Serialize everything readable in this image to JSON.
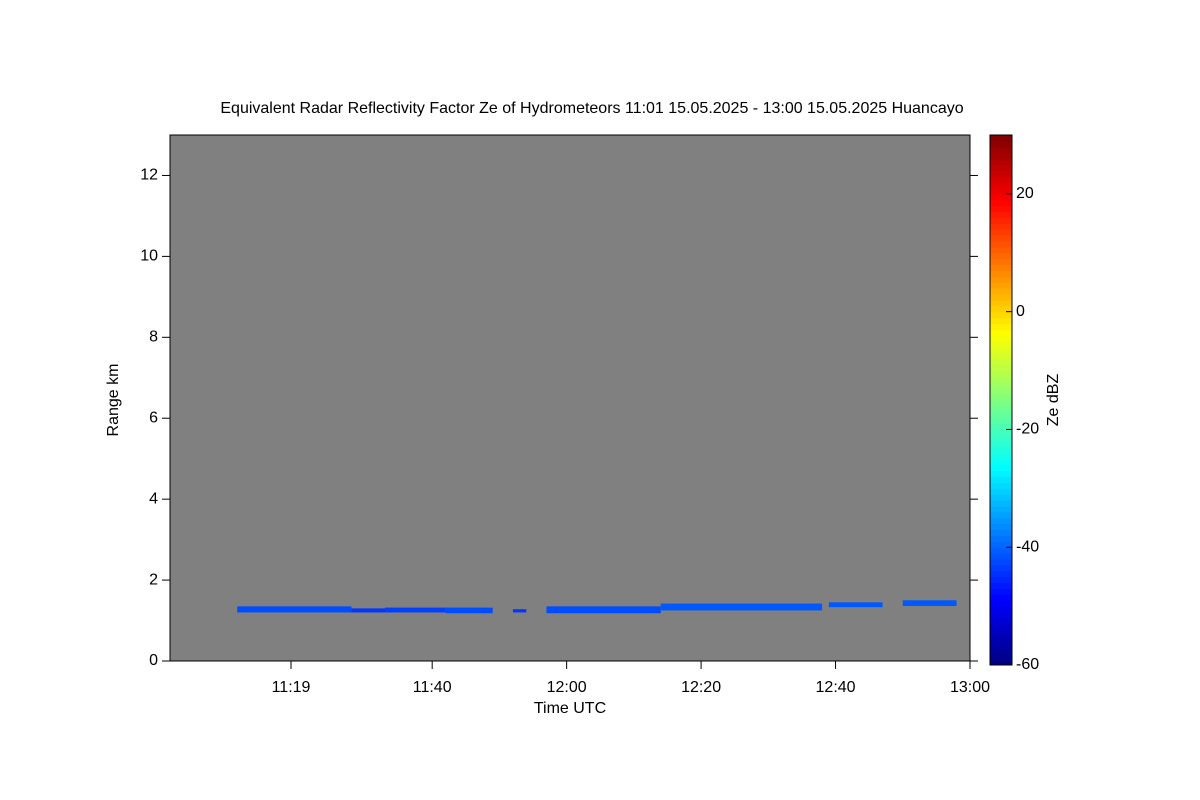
{
  "chart_data": {
    "type": "time-height",
    "title": "Equivalent Radar Reflectivity Factor Ze of Hydrometeors   11:01 15.05.2025 - 13:00 15.05.2025 Huancayo",
    "x_label": "Time UTC",
    "y_label": "Range km",
    "colorbar_label": "Ze dBZ",
    "background": "#808080",
    "xlim": [
      "11:01",
      "13:00"
    ],
    "xticks": [
      "11:19",
      "11:40",
      "12:00",
      "12:20",
      "12:40",
      "13:00"
    ],
    "ylim": [
      0,
      13
    ],
    "yticks": [
      0,
      2,
      4,
      6,
      8,
      10,
      12
    ],
    "clim": [
      -60,
      30
    ],
    "cticks": [
      -60,
      -40,
      -20,
      0,
      20
    ],
    "colormap": "jet",
    "segments": [
      {
        "x": [
          "11:11",
          "11:28"
        ],
        "bottom": 1.2,
        "top": 1.35,
        "value": -42
      },
      {
        "x": [
          "11:28",
          "11:34"
        ],
        "bottom": 1.2,
        "top": 1.3,
        "value": -44
      },
      {
        "x": [
          "11:33",
          "11:42"
        ],
        "bottom": 1.2,
        "top": 1.32,
        "value": -43
      },
      {
        "x": [
          "11:42",
          "11:49"
        ],
        "bottom": 1.18,
        "top": 1.32,
        "value": -42
      },
      {
        "x": [
          "11:52",
          "11:54"
        ],
        "bottom": 1.2,
        "top": 1.28,
        "value": -44
      },
      {
        "x": [
          "11:57",
          "12:14"
        ],
        "bottom": 1.18,
        "top": 1.35,
        "value": -42
      },
      {
        "x": [
          "12:14",
          "12:38"
        ],
        "bottom": 1.25,
        "top": 1.42,
        "value": -41
      },
      {
        "x": [
          "12:39",
          "12:47"
        ],
        "bottom": 1.33,
        "top": 1.45,
        "value": -41
      },
      {
        "x": [
          "12:50",
          "12:58"
        ],
        "bottom": 1.36,
        "top": 1.5,
        "value": -41
      }
    ]
  }
}
